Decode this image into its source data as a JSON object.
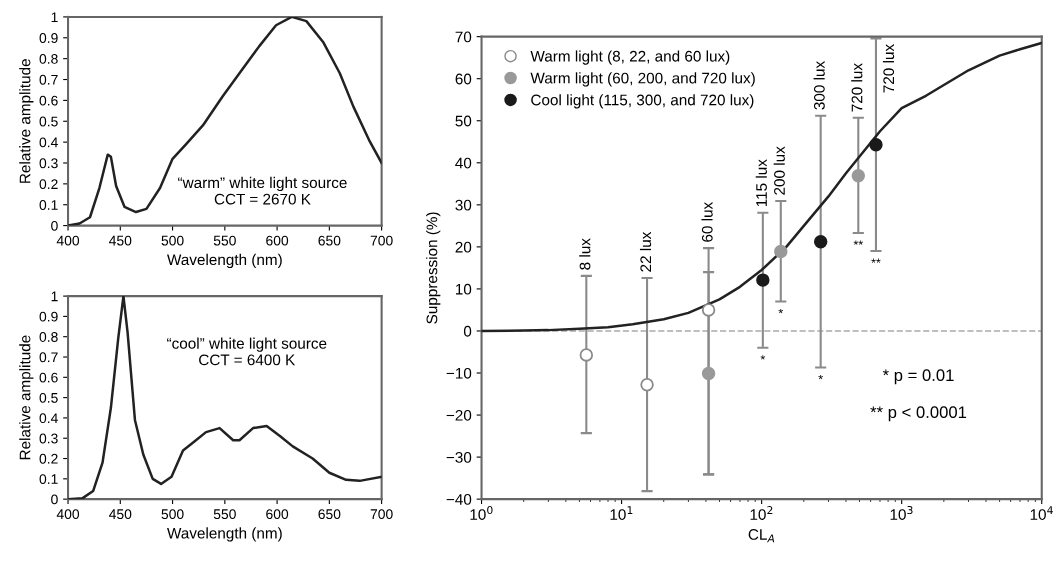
{
  "chart_data": [
    {
      "type": "line",
      "xlabel": "Wavelength (nm)",
      "ylabel": "Relative amplitude",
      "xlim": [
        400,
        700
      ],
      "ylim": [
        0,
        1
      ],
      "xticks": [
        400,
        450,
        500,
        550,
        600,
        650,
        700
      ],
      "yticks": [
        0,
        0.1,
        0.2,
        0.3,
        0.4,
        0.5,
        0.6,
        0.7,
        0.8,
        0.9,
        1
      ],
      "grid": false,
      "legend": false,
      "marker": "none",
      "line_style": "solid",
      "annotations": [
        "“warm” white light source\nCCT = 2670 K"
      ],
      "series": [
        {
          "color": "#222222",
          "x": [
            400,
            411,
            421,
            430,
            438,
            441,
            446,
            454,
            465,
            475,
            488,
            500,
            513,
            529,
            548,
            564,
            583,
            599,
            614,
            628,
            644,
            660,
            673,
            688,
            700
          ],
          "values": [
            0,
            0.01,
            0.04,
            0.18,
            0.34,
            0.33,
            0.19,
            0.09,
            0.065,
            0.08,
            0.18,
            0.32,
            0.39,
            0.48,
            0.62,
            0.73,
            0.86,
            0.96,
            1.0,
            0.98,
            0.88,
            0.73,
            0.57,
            0.41,
            0.3
          ]
        }
      ]
    },
    {
      "type": "line",
      "xlabel": "Wavelength (nm)",
      "ylabel": "Relative amplitude",
      "xlim": [
        400,
        700
      ],
      "ylim": [
        0,
        1
      ],
      "xticks": [
        400,
        450,
        500,
        550,
        600,
        650,
        700
      ],
      "yticks": [
        0,
        0.1,
        0.2,
        0.3,
        0.4,
        0.5,
        0.6,
        0.7,
        0.8,
        0.9,
        1
      ],
      "grid": false,
      "legend": false,
      "marker": "none",
      "line_style": "solid",
      "annotations": [
        "“cool” white light source\nCCT = 6400 K"
      ],
      "series": [
        {
          "color": "#222222",
          "x": [
            400,
            414,
            424,
            433,
            441,
            448,
            453,
            457,
            464,
            472,
            481,
            489,
            499,
            510,
            520,
            532,
            545,
            558,
            564,
            577,
            590,
            603,
            615,
            634,
            650,
            666,
            679,
            700
          ],
          "values": [
            0,
            0.005,
            0.04,
            0.18,
            0.45,
            0.79,
            1.0,
            0.82,
            0.39,
            0.22,
            0.1,
            0.075,
            0.11,
            0.24,
            0.28,
            0.33,
            0.35,
            0.29,
            0.29,
            0.35,
            0.36,
            0.31,
            0.26,
            0.2,
            0.13,
            0.095,
            0.09,
            0.11
          ]
        }
      ]
    },
    {
      "type": "scatter",
      "xlabel": "CL$_{A}$",
      "ylabel": "Suppression (%)",
      "log": "x",
      "xlim": [
        1,
        10000
      ],
      "ylim": [
        -40,
        70
      ],
      "xticks": [
        {
          "value": 1,
          "label": "10$^{0}$"
        },
        {
          "value": 10,
          "label": "10$^{1}$"
        },
        {
          "value": 100,
          "label": "10$^{2}$"
        },
        {
          "value": 1000,
          "label": "10$^{3}$"
        },
        {
          "value": 10000,
          "label": "10$^{4}$"
        }
      ],
      "yticks": [
        {
          "value": -40,
          "label": "−40"
        },
        {
          "value": -30,
          "label": "−30"
        },
        {
          "value": -20,
          "label": "−20"
        },
        {
          "value": -10,
          "label": "−10"
        },
        0,
        10,
        20,
        30,
        40,
        50,
        60,
        70
      ],
      "grid": false,
      "legend": "top left",
      "marker": "circle",
      "ref_lines": [
        {
          "axis": "y",
          "value": 0,
          "color": "#aaaaaa",
          "line_style": "dashed"
        }
      ],
      "annotations": [
        "* p = 0.01",
        "** p < 0.0001",
        {
          "text": "8 lux",
          "x": 5.6,
          "y": 13.1
        },
        {
          "text": "22 lux",
          "x": 15.2,
          "y": 12.6
        },
        {
          "text": "60 lux",
          "x": 41.8,
          "y": 19.7
        },
        {
          "text": "115 lux",
          "x": 102,
          "y": 28.1
        },
        {
          "text": "200 lux",
          "x": 137,
          "y": 30.9
        },
        {
          "text": "300 lux",
          "x": 264,
          "y": 51.2
        },
        {
          "text": "720 lux",
          "x": 490,
          "y": 50.7
        },
        {
          "text": "720 lux",
          "x": 655,
          "y": 69.6
        },
        {
          "text": "*",
          "x": 102,
          "y": -4.0
        },
        {
          "text": "*",
          "x": 137,
          "y": 7.0
        },
        {
          "text": "*",
          "x": 264,
          "y": -8.7
        },
        {
          "text": "**",
          "x": 490,
          "y": 23.3
        },
        {
          "text": "**",
          "x": 655,
          "y": 19.0
        }
      ],
      "series": [
        {
          "type": "line",
          "color": "#222222",
          "marker": "none",
          "x": [
            1,
            2,
            3,
            5,
            8,
            12,
            20,
            30,
            50,
            70,
            100,
            150,
            200,
            300,
            400,
            500,
            700,
            1000,
            1500,
            2000,
            3000,
            5000,
            7000,
            10000
          ],
          "values": [
            0,
            0.1,
            0.2,
            0.5,
            0.9,
            1.6,
            2.8,
            4.3,
            7.5,
            10.5,
            14.5,
            20,
            25,
            32,
            37.5,
            41.5,
            47.5,
            53,
            56,
            58.5,
            62,
            65.5,
            67,
            68.5
          ]
        },
        {
          "name": "Warm light (8, 22, and 60 lux)",
          "color": "#ffffff",
          "x": [
            5.6,
            15.2,
            41.8
          ],
          "values": [
            -5.7,
            -12.8,
            5.0
          ],
          "errors": [
            [
              -24.3,
              13.1
            ],
            [
              -38.1,
              12.6
            ],
            [
              -34.1,
              14.0
            ]
          ]
        },
        {
          "name": "Warm light (60, 200, and 720 lux)",
          "color": "#999999",
          "x": [
            41.8,
            137,
            490
          ],
          "values": [
            -10.1,
            18.9,
            36.9
          ],
          "errors": [
            [
              -34.1,
              19.7
            ],
            [
              7.0,
              30.9
            ],
            [
              23.3,
              50.7
            ]
          ]
        },
        {
          "name": "Cool light (115, 300, and 720 lux)",
          "color": "#1a1a1a",
          "x": [
            102,
            264,
            655
          ],
          "values": [
            12.1,
            21.2,
            44.3
          ],
          "errors": [
            [
              -4.0,
              28.1
            ],
            [
              -8.7,
              51.2
            ],
            [
              19.0,
              69.6
            ]
          ]
        }
      ]
    }
  ]
}
